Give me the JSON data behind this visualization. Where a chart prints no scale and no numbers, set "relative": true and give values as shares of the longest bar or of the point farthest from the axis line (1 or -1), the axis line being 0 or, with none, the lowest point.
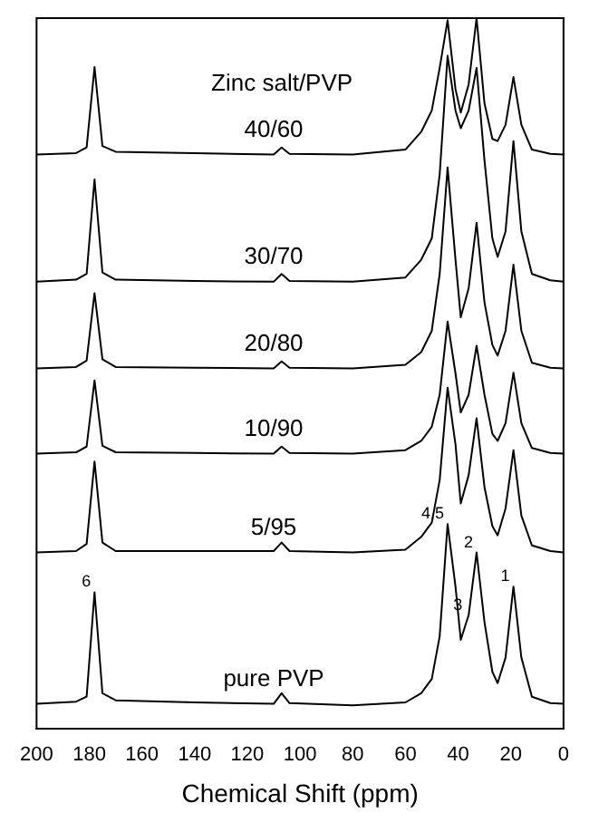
{
  "chart_data": {
    "type": "line",
    "relative": true,
    "xlabel": "Chemical Shift (ppm)",
    "xlim": [
      200,
      0
    ],
    "xticks": [
      200,
      180,
      160,
      140,
      120,
      100,
      80,
      60,
      40,
      20,
      0
    ],
    "grid": false,
    "legend": false,
    "marker": "none",
    "line_style": "solid",
    "x": [
      200,
      185,
      181,
      178,
      175,
      170,
      140,
      110,
      107,
      104,
      80,
      60,
      54,
      50,
      47,
      44,
      41,
      39,
      36,
      33,
      30,
      27,
      25,
      22,
      19,
      16,
      12,
      5,
      0
    ],
    "series": [
      {
        "name": "40/60",
        "color": "#000000",
        "values": [
          0.808,
          0.81,
          0.818,
          0.931,
          0.82,
          0.812,
          0.81,
          0.808,
          0.818,
          0.809,
          0.808,
          0.815,
          0.84,
          0.87,
          0.93,
          0.997,
          0.9,
          0.867,
          0.907,
          1,
          0.88,
          0.83,
          0.827,
          0.85,
          0.917,
          0.85,
          0.815,
          0.809,
          0.808
        ]
      },
      {
        "name": "30/70",
        "color": "#000000",
        "values": [
          0.629,
          0.632,
          0.64,
          0.773,
          0.642,
          0.632,
          0.63,
          0.629,
          0.64,
          0.63,
          0.629,
          0.635,
          0.66,
          0.69,
          0.78,
          0.947,
          0.87,
          0.845,
          0.87,
          0.93,
          0.8,
          0.69,
          0.664,
          0.7,
          0.827,
          0.7,
          0.64,
          0.631,
          0.629
        ]
      },
      {
        "name": "20/80",
        "color": "#000000",
        "values": [
          0.507,
          0.509,
          0.518,
          0.613,
          0.52,
          0.509,
          0.508,
          0.507,
          0.517,
          0.508,
          0.507,
          0.512,
          0.53,
          0.56,
          0.64,
          0.79,
          0.66,
          0.579,
          0.62,
          0.712,
          0.6,
          0.54,
          0.525,
          0.56,
          0.653,
          0.56,
          0.515,
          0.508,
          0.507
        ]
      },
      {
        "name": "10/90",
        "color": "#000000",
        "values": [
          0.387,
          0.389,
          0.397,
          0.49,
          0.398,
          0.389,
          0.388,
          0.387,
          0.397,
          0.388,
          0.387,
          0.392,
          0.405,
          0.425,
          0.47,
          0.573,
          0.5,
          0.445,
          0.47,
          0.539,
          0.47,
          0.415,
          0.405,
          0.43,
          0.501,
          0.43,
          0.395,
          0.388,
          0.387
        ]
      },
      {
        "name": "5/95",
        "color": "#000000",
        "values": [
          0.248,
          0.25,
          0.26,
          0.376,
          0.262,
          0.25,
          0.25,
          0.25,
          0.262,
          0.25,
          0.248,
          0.252,
          0.27,
          0.29,
          0.35,
          0.48,
          0.4,
          0.317,
          0.357,
          0.437,
          0.34,
          0.285,
          0.272,
          0.31,
          0.392,
          0.3,
          0.258,
          0.25,
          0.248
        ]
      },
      {
        "name": "pure PVP",
        "color": "#000000",
        "values": [
          0.035,
          0.038,
          0.045,
          0.192,
          0.05,
          0.04,
          0.037,
          0.035,
          0.05,
          0.036,
          0.033,
          0.037,
          0.05,
          0.07,
          0.13,
          0.288,
          0.2,
          0.125,
          0.16,
          0.248,
          0.15,
          0.08,
          0.064,
          0.1,
          0.2,
          0.1,
          0.045,
          0.036,
          0.035
        ]
      }
    ],
    "annotations": [
      "Zinc salt/PVP",
      {
        "text": "6",
        "x": 178,
        "y": 0.192
      },
      {
        "text": "4,5",
        "x": 44,
        "y": 0.288
      },
      {
        "text": "3",
        "x": 37,
        "y": 0.16
      },
      {
        "text": "2",
        "x": 33,
        "y": 0.248
      },
      {
        "text": "1",
        "x": 19,
        "y": 0.2
      }
    ]
  }
}
